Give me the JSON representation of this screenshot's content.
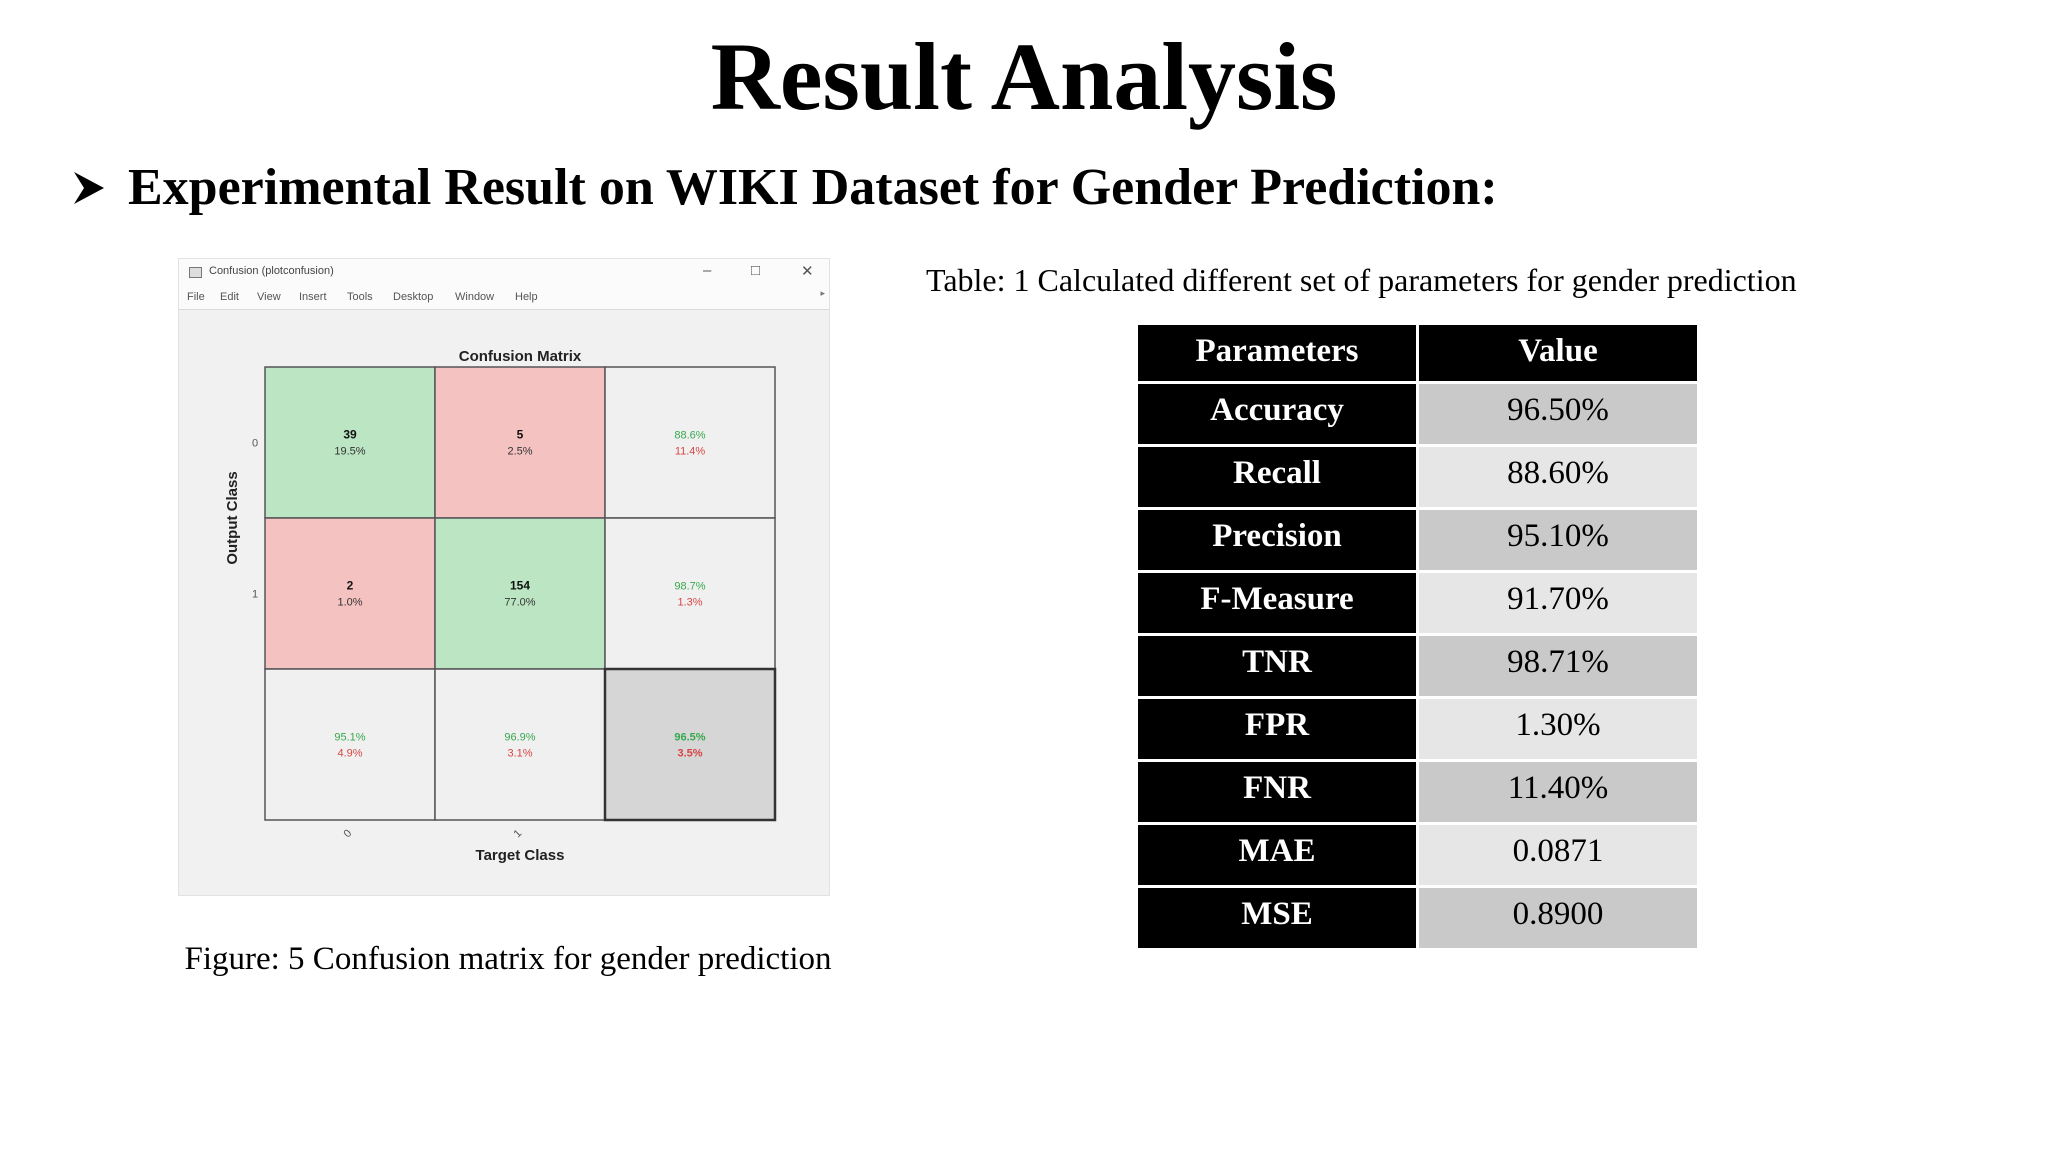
{
  "slide": {
    "title": "Result Analysis",
    "subtitle": "Experimental Result on WIKI Dataset for Gender Prediction:",
    "bullet_icon": "arrow-bullet-icon"
  },
  "figure": {
    "window_title": "Confusion (plotconfusion)",
    "window_controls": {
      "minimize": "–",
      "maximize": "□",
      "close": "✕"
    },
    "menu": [
      "File",
      "Edit",
      "View",
      "Insert",
      "Tools",
      "Desktop",
      "Window",
      "Help"
    ],
    "caption": "Figure: 5 Confusion matrix for gender prediction"
  },
  "chart_data": {
    "type": "heatmap",
    "title": "Confusion Matrix",
    "xlabel": "Target Class",
    "ylabel": "Output Class",
    "x_ticks": [
      "0",
      "1"
    ],
    "y_ticks": [
      "0",
      "1"
    ],
    "cells": [
      [
        {
          "count": "39",
          "pct": "19.5%"
        },
        {
          "count": "5",
          "pct": "2.5%"
        },
        {
          "good": "88.6%",
          "bad": "11.4%"
        }
      ],
      [
        {
          "count": "2",
          "pct": "1.0%"
        },
        {
          "count": "154",
          "pct": "77.0%"
        },
        {
          "good": "98.7%",
          "bad": "1.3%"
        }
      ],
      [
        {
          "good": "95.1%",
          "bad": "4.9%"
        },
        {
          "good": "96.9%",
          "bad": "3.1%"
        },
        {
          "good": "96.5%",
          "bad": "3.5%"
        }
      ]
    ],
    "colors": {
      "correct": "#bce5c3",
      "incorrect": "#f5c2c2",
      "summary": "#f0f0f0",
      "total": "#d6d6d6",
      "good_text": "#37a84e",
      "bad_text": "#d64545"
    }
  },
  "table": {
    "caption": "Table: 1 Calculated different set of parameters for gender prediction",
    "headers": [
      "Parameters",
      "Value"
    ],
    "rows": [
      {
        "param": "Accuracy",
        "value": "96.50%"
      },
      {
        "param": "Recall",
        "value": "88.60%"
      },
      {
        "param": "Precision",
        "value": "95.10%"
      },
      {
        "param": "F-Measure",
        "value": "91.70%"
      },
      {
        "param": "TNR",
        "value": "98.71%"
      },
      {
        "param": "FPR",
        "value": "1.30%"
      },
      {
        "param": "FNR",
        "value": "11.40%"
      },
      {
        "param": "MAE",
        "value": "0.0871"
      },
      {
        "param": "MSE",
        "value": "0.8900"
      }
    ]
  }
}
